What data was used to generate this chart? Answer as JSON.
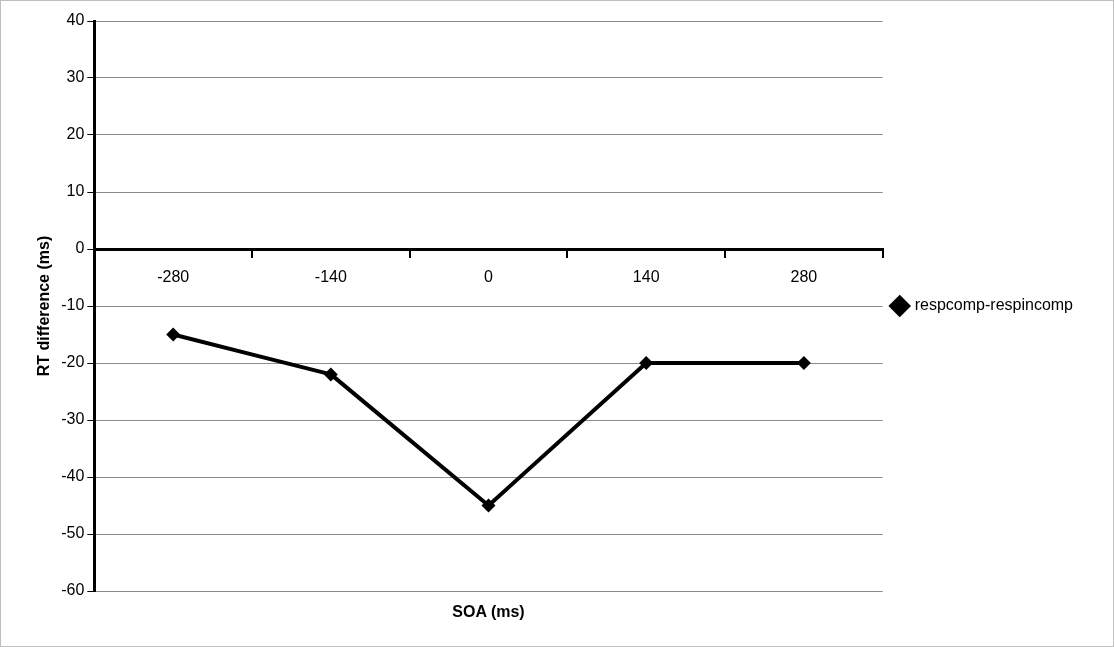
{
  "chart_data": {
    "type": "line",
    "xlabel": "SOA (ms)",
    "ylabel": "RT difference (ms)",
    "categories": [
      "-280",
      "-140",
      "0",
      "140",
      "280"
    ],
    "series": [
      {
        "name": "respcomp-respincomp",
        "color": "#000000",
        "values": [
          -15,
          -22,
          -45,
          -20,
          -20
        ]
      }
    ],
    "ylim": [
      -60,
      40
    ],
    "yticks": [
      -60,
      -50,
      -40,
      -30,
      -20,
      -10,
      0,
      10,
      20,
      30,
      40
    ],
    "grid": "y",
    "legend": "right",
    "marker": "diamond",
    "line_style": "solid"
  }
}
